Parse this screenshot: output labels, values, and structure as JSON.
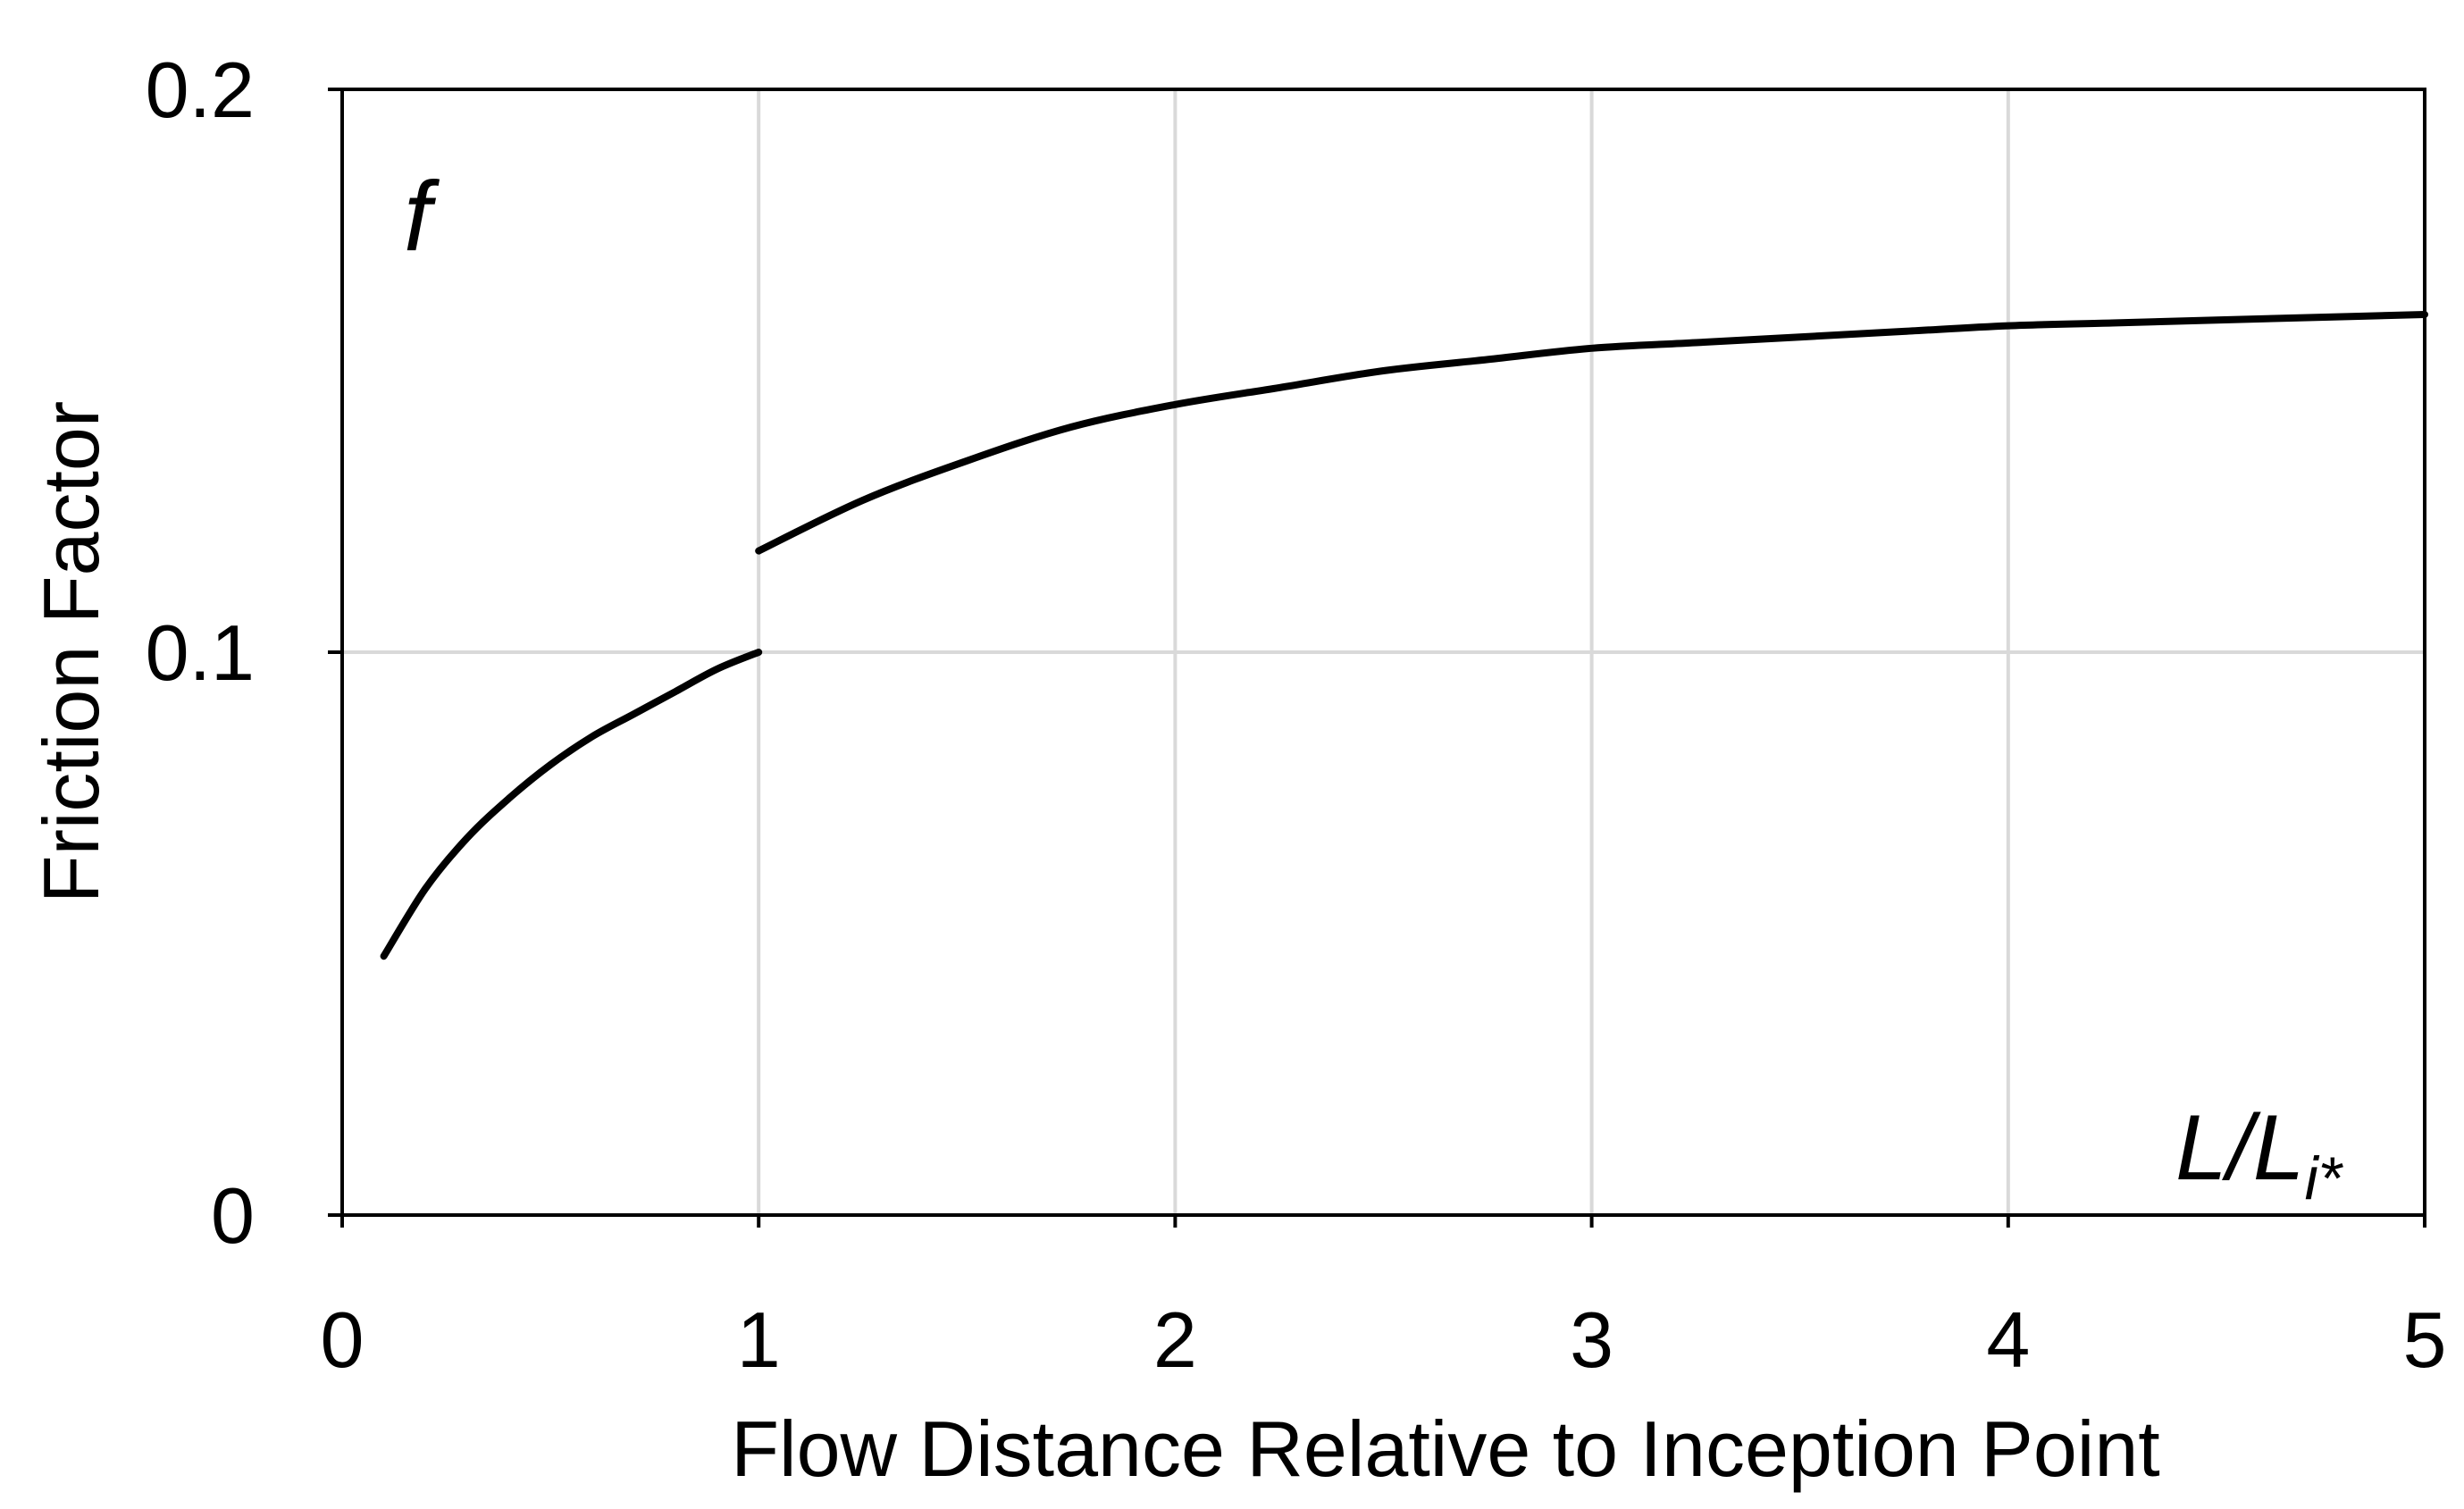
{
  "chart_data": {
    "type": "line",
    "title": "",
    "xlabel": "Flow Distance Relative to Inception Point",
    "ylabel": "Friction Factor",
    "xlim": [
      0,
      5
    ],
    "ylim": [
      0,
      0.2
    ],
    "x_ticks": [
      "0",
      "1",
      "2",
      "3",
      "4",
      "5"
    ],
    "y_ticks": [
      "0",
      "0.1",
      "0.2"
    ],
    "x_tick_values": [
      0,
      1,
      2,
      3,
      4,
      5
    ],
    "y_tick_values": [
      0,
      0.1,
      0.2
    ],
    "grid": true,
    "legend": "none",
    "annotations": {
      "y_symbol": "f",
      "x_symbol_main": "L/L",
      "x_symbol_sub": "i*"
    },
    "colors": {
      "line": "#000000",
      "grid": "#d9d9d9",
      "axes": "#000000"
    },
    "series": [
      {
        "segment": "before-inception",
        "x": [
          0.1,
          0.2,
          0.3,
          0.4,
          0.5,
          0.6,
          0.7,
          0.8,
          0.9,
          1.0
        ],
        "y": [
          0.046,
          0.058,
          0.067,
          0.074,
          0.08,
          0.085,
          0.089,
          0.093,
          0.097,
          0.1
        ]
      },
      {
        "segment": "after-inception",
        "x": [
          1.0,
          1.25,
          1.5,
          1.75,
          2.0,
          2.25,
          2.5,
          2.75,
          3.0,
          3.25,
          3.5,
          3.75,
          4.0,
          4.25,
          4.5,
          4.75,
          5.0
        ],
        "y": [
          0.118,
          0.127,
          0.134,
          0.14,
          0.144,
          0.147,
          0.15,
          0.152,
          0.154,
          0.155,
          0.156,
          0.157,
          0.158,
          0.1585,
          0.159,
          0.1595,
          0.16
        ]
      }
    ]
  }
}
